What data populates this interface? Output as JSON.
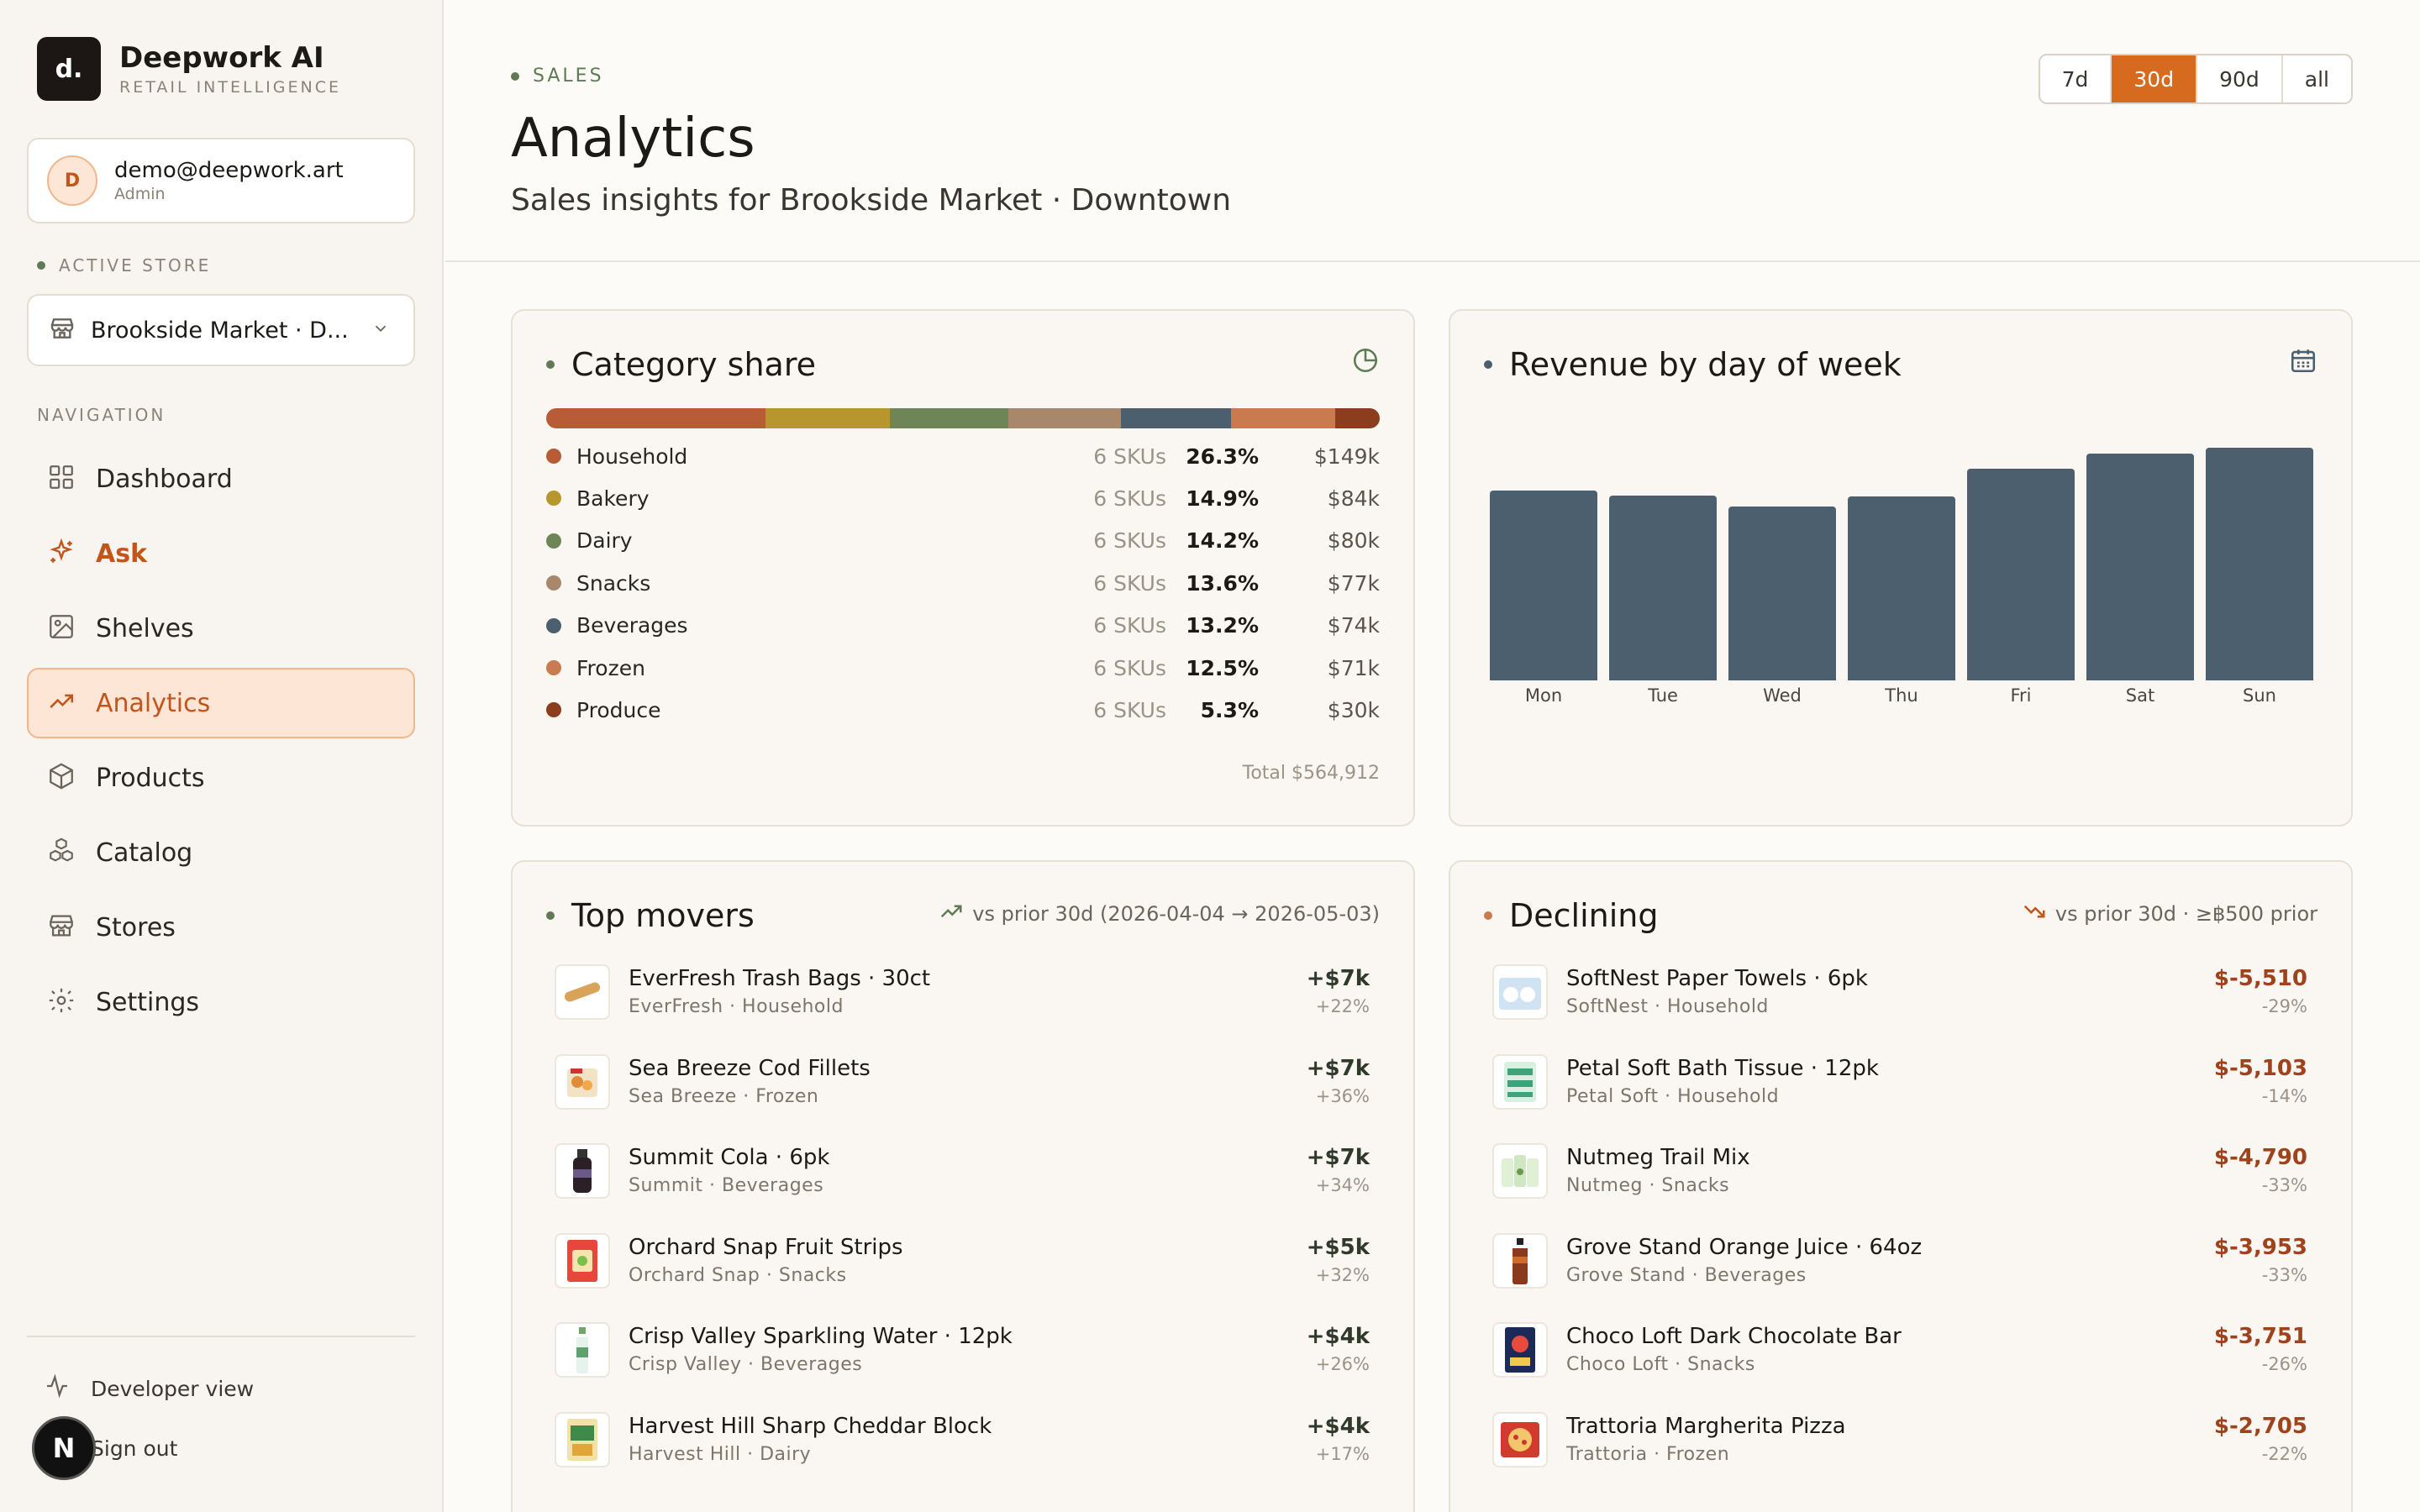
{
  "brand": {
    "logo": "d.",
    "name": "Deepwork AI",
    "subtitle": "RETAIL INTELLIGENCE"
  },
  "user": {
    "initial": "D",
    "email": "demo@deepwork.art",
    "role": "Admin"
  },
  "store": {
    "section_label": "ACTIVE STORE",
    "name": "Brookside Market · D..."
  },
  "nav": {
    "section_label": "NAVIGATION",
    "items": [
      {
        "label": "Dashboard",
        "icon": "grid-icon"
      },
      {
        "label": "Ask",
        "icon": "sparkle-icon"
      },
      {
        "label": "Shelves",
        "icon": "image-icon"
      },
      {
        "label": "Analytics",
        "icon": "trending-up-icon"
      },
      {
        "label": "Products",
        "icon": "box-icon"
      },
      {
        "label": "Catalog",
        "icon": "boxes-icon"
      },
      {
        "label": "Stores",
        "icon": "store-icon"
      },
      {
        "label": "Settings",
        "icon": "gear-icon"
      }
    ]
  },
  "footer": {
    "developer_view": "Developer view",
    "sign_out": "Sign out",
    "badge": "N"
  },
  "header": {
    "eyebrow": "SALES",
    "title": "Analytics",
    "subtitle": "Sales insights for Brookside Market · Downtown",
    "ranges": [
      "7d",
      "30d",
      "90d",
      "all"
    ],
    "active_range": "30d"
  },
  "category_share": {
    "title": "Category share",
    "rows": [
      {
        "name": "Household",
        "skus": "6 SKUs",
        "pct": "26.3%",
        "rev": "$149k",
        "share": 26.3,
        "color": "#b85c38"
      },
      {
        "name": "Bakery",
        "skus": "6 SKUs",
        "pct": "14.9%",
        "rev": "$84k",
        "share": 14.9,
        "color": "#b8962e"
      },
      {
        "name": "Dairy",
        "skus": "6 SKUs",
        "pct": "14.2%",
        "rev": "$80k",
        "share": 14.2,
        "color": "#6e8558"
      },
      {
        "name": "Snacks",
        "skus": "6 SKUs",
        "pct": "13.6%",
        "rev": "$77k",
        "share": 13.6,
        "color": "#a8876a"
      },
      {
        "name": "Beverages",
        "skus": "6 SKUs",
        "pct": "13.2%",
        "rev": "$74k",
        "share": 13.2,
        "color": "#4c5f6e"
      },
      {
        "name": "Frozen",
        "skus": "6 SKUs",
        "pct": "12.5%",
        "rev": "$71k",
        "share": 12.5,
        "color": "#c97a4e"
      },
      {
        "name": "Produce",
        "skus": "6 SKUs",
        "pct": "5.3%",
        "rev": "$30k",
        "share": 5.3,
        "color": "#8b3d1e"
      }
    ],
    "total": "Total $564,912"
  },
  "chart_data": {
    "type": "bar",
    "title": "Revenue by day of week",
    "categories": [
      "Mon",
      "Tue",
      "Wed",
      "Thu",
      "Fri",
      "Sat",
      "Sun"
    ],
    "values": [
      78,
      76,
      71.5,
      75.5,
      87,
      93,
      95.5
    ],
    "ylim": [
      0,
      100
    ],
    "color": "#4c5f6e"
  },
  "top_movers": {
    "title": "Top movers",
    "meta": "vs prior 30d (2026-04-04 → 2026-05-03)",
    "items": [
      {
        "name": "EverFresh Trash Bags · 30ct",
        "brand": "EverFresh · Household",
        "amount": "+$7k",
        "pct": "+22%"
      },
      {
        "name": "Sea Breeze Cod Fillets",
        "brand": "Sea Breeze · Frozen",
        "amount": "+$7k",
        "pct": "+36%"
      },
      {
        "name": "Summit Cola · 6pk",
        "brand": "Summit · Beverages",
        "amount": "+$7k",
        "pct": "+34%"
      },
      {
        "name": "Orchard Snap Fruit Strips",
        "brand": "Orchard Snap · Snacks",
        "amount": "+$5k",
        "pct": "+32%"
      },
      {
        "name": "Crisp Valley Sparkling Water · 12pk",
        "brand": "Crisp Valley · Beverages",
        "amount": "+$4k",
        "pct": "+26%"
      },
      {
        "name": "Harvest Hill Sharp Cheddar Block",
        "brand": "Harvest Hill · Dairy",
        "amount": "+$4k",
        "pct": "+17%"
      }
    ]
  },
  "declining": {
    "title": "Declining",
    "meta": "vs prior 30d · ≥฿500 prior",
    "items": [
      {
        "name": "SoftNest Paper Towels · 6pk",
        "brand": "SoftNest · Household",
        "amount": "$-5,510",
        "pct": "-29%"
      },
      {
        "name": "Petal Soft Bath Tissue · 12pk",
        "brand": "Petal Soft · Household",
        "amount": "$-5,103",
        "pct": "-14%"
      },
      {
        "name": "Nutmeg Trail Mix",
        "brand": "Nutmeg · Snacks",
        "amount": "$-4,790",
        "pct": "-33%"
      },
      {
        "name": "Grove Stand Orange Juice · 64oz",
        "brand": "Grove Stand · Beverages",
        "amount": "$-3,953",
        "pct": "-33%"
      },
      {
        "name": "Choco Loft Dark Chocolate Bar",
        "brand": "Choco Loft · Snacks",
        "amount": "$-3,751",
        "pct": "-26%"
      },
      {
        "name": "Trattoria Margherita Pizza",
        "brand": "Trattoria · Frozen",
        "amount": "$-2,705",
        "pct": "-22%"
      }
    ]
  }
}
